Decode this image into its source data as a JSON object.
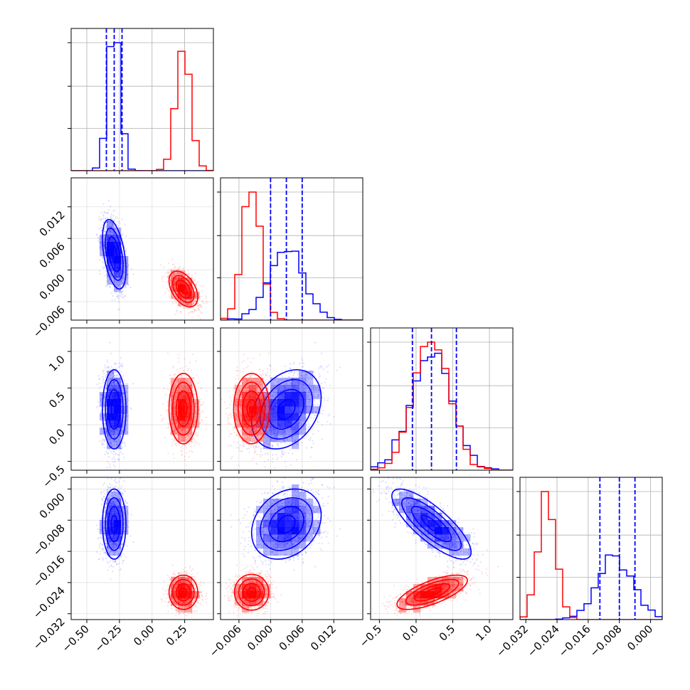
{
  "chart_data": {
    "type": "corner",
    "parameters": 4,
    "series": [
      {
        "name": "",
        "color": "#0000ff",
        "mean": [
          -0.29,
          0.003,
          0.21,
          -0.009
        ],
        "std": [
          0.045,
          0.0033,
          0.27,
          0.0045
        ],
        "corr": [
          [
            1,
            -0.45,
            0,
            0
          ],
          [
            -0.45,
            1,
            0.3,
            0.25
          ],
          [
            0,
            0.3,
            1,
            -0.8
          ],
          [
            0,
            0.25,
            -0.8,
            1
          ]
        ],
        "quantiles": [
          [
            -0.35,
            -0.29,
            -0.23
          ],
          [
            0.0,
            0.003,
            0.006
          ],
          [
            -0.05,
            0.21,
            0.55
          ],
          [
            -0.013,
            -0.008,
            -0.004
          ]
        ]
      },
      {
        "name": "",
        "color": "#ff0000",
        "mean": [
          0.24,
          -0.0036,
          0.22,
          -0.0265
        ],
        "std": [
          0.055,
          0.0017,
          0.24,
          0.0022
        ],
        "corr": [
          [
            1,
            -0.45,
            0,
            0
          ],
          [
            -0.45,
            1,
            0,
            0
          ],
          [
            0,
            0,
            1,
            0.7
          ],
          [
            0,
            0,
            0.7,
            1
          ]
        ]
      }
    ],
    "ranges": [
      [
        -0.62,
        0.47
      ],
      [
        -0.0095,
        0.0175
      ],
      [
        -0.62,
        1.32
      ],
      [
        -0.0335,
        0.003
      ]
    ],
    "ticks": [
      {
        "values": [
          -0.5,
          -0.25,
          0.0,
          0.25
        ],
        "labels": [
          "−0.50",
          "−0.25",
          "0.00",
          "0.25"
        ]
      },
      {
        "values": [
          -0.006,
          0.0,
          0.006,
          0.012
        ],
        "labels": [
          "−0.006",
          "0.000",
          "0.006",
          "0.012"
        ]
      },
      {
        "values": [
          -0.5,
          0.0,
          0.5,
          1.0
        ],
        "labels": [
          "−0.5",
          "0.0",
          "0.5",
          "1.0"
        ]
      },
      {
        "values": [
          -0.032,
          -0.024,
          -0.016,
          -0.008,
          0.0
        ],
        "labels": [
          "−0.032",
          "−0.024",
          "−0.016",
          "−0.008",
          "0.000"
        ]
      }
    ],
    "hist_bins": 20,
    "grid": true,
    "legend": "none"
  }
}
